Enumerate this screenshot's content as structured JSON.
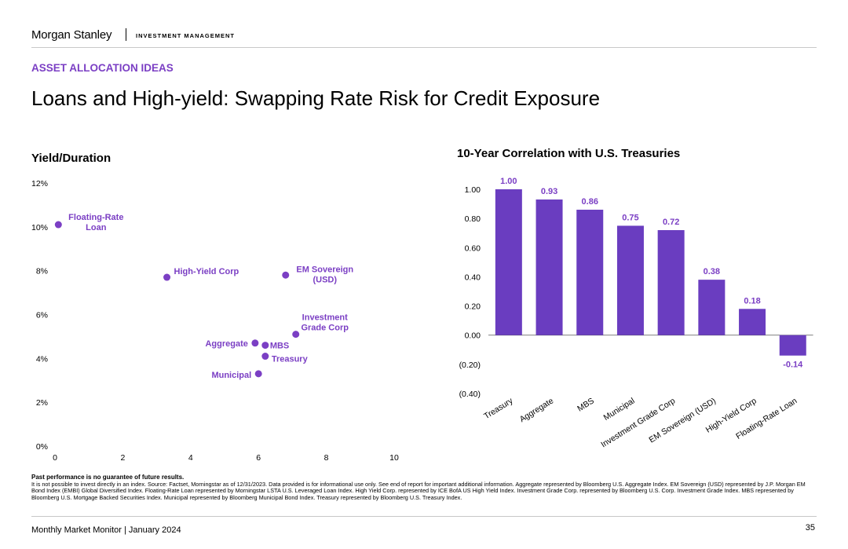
{
  "header": {
    "brand": "Morgan Stanley",
    "division": "INVESTMENT MANAGEMENT"
  },
  "section_tag": "ASSET ALLOCATION IDEAS",
  "page_title": "Loans and High-yield: Swapping Rate Risk for Credit Exposure",
  "colors": {
    "accent": "#7b3fc4",
    "bar": "#6a3dc0"
  },
  "chart_data": [
    {
      "type": "scatter",
      "title": "Yield/Duration",
      "xlabel": "",
      "ylabel": "",
      "xlim": [
        0,
        10
      ],
      "ylim": [
        0,
        12
      ],
      "x_ticks": [
        0,
        2,
        4,
        6,
        8,
        10
      ],
      "y_ticks": [
        "0%",
        "2%",
        "4%",
        "6%",
        "8%",
        "10%",
        "12%"
      ],
      "grid": false,
      "points": [
        {
          "name": "Floating-Rate Loan",
          "lines": [
            "Floating-Rate",
            "Loan"
          ],
          "x": 0.1,
          "y": 10.1
        },
        {
          "name": "High-Yield Corp",
          "lines": [
            "High-Yield Corp"
          ],
          "x": 3.3,
          "y": 7.7
        },
        {
          "name": "EM Sovereign (USD)",
          "lines": [
            "EM Sovereign",
            "(USD)"
          ],
          "x": 6.8,
          "y": 7.8
        },
        {
          "name": "Investment Grade Corp",
          "lines": [
            "Investment",
            "Grade Corp"
          ],
          "x": 7.1,
          "y": 5.1
        },
        {
          "name": "Aggregate",
          "lines": [
            "Aggregate"
          ],
          "x": 5.9,
          "y": 4.7
        },
        {
          "name": "MBS",
          "lines": [
            "MBS"
          ],
          "x": 6.2,
          "y": 4.6
        },
        {
          "name": "Treasury",
          "lines": [
            "Treasury"
          ],
          "x": 6.2,
          "y": 4.1
        },
        {
          "name": "Municipal",
          "lines": [
            "Municipal"
          ],
          "x": 6.0,
          "y": 3.3
        }
      ]
    },
    {
      "type": "bar",
      "title": "10-Year Correlation with U.S. Treasuries",
      "xlabel": "",
      "ylabel": "",
      "ylim": [
        -0.4,
        1.0
      ],
      "y_ticks": [
        "(0.40)",
        "(0.20)",
        "0.00",
        "0.20",
        "0.40",
        "0.60",
        "0.80",
        "1.00"
      ],
      "grid": false,
      "categories": [
        "Treasury",
        "Aggregate",
        "MBS",
        "Municipal",
        "Investment Grade Corp",
        "EM Sovereign (USD)",
        "High-Yield Corp",
        "Floating-Rate Loan"
      ],
      "values": [
        1.0,
        0.93,
        0.86,
        0.75,
        0.72,
        0.38,
        0.18,
        -0.14
      ],
      "value_labels": [
        "1.00",
        "0.93",
        "0.86",
        "0.75",
        "0.72",
        "0.38",
        "0.18",
        "-0.14"
      ]
    }
  ],
  "footnote": {
    "bold": "Past performance is no guarantee of future results.",
    "text": "It is not possible to invest directly in an index. Source: Factset, Morningstar as of 12/31/2023. Data provided is for informational use only. See end of report for important additional information. Aggregate represented by Bloomberg U.S. Aggregate Index. EM Sovereign (USD) represented by J.P. Morgan EM Bond Index (EMBI) Global Diversified Index. Floating-Rate Loan represented by Morningstar LSTA U.S. Leveraged Loan Index. High Yield Corp. represented by ICE BofA US High Yield Index. Investment Grade Corp. represented by Bloomberg U.S. Corp. Investment Grade Index. MBS represented by Bloomberg U.S. Mortgage Backed Securities Index. Municipal represented by Bloomberg Municipal Bond Index. Treasury represented by Bloomberg U.S. Treasury Index."
  },
  "footer": {
    "left": "Monthly Market Monitor | January 2024",
    "page_number": "35"
  }
}
